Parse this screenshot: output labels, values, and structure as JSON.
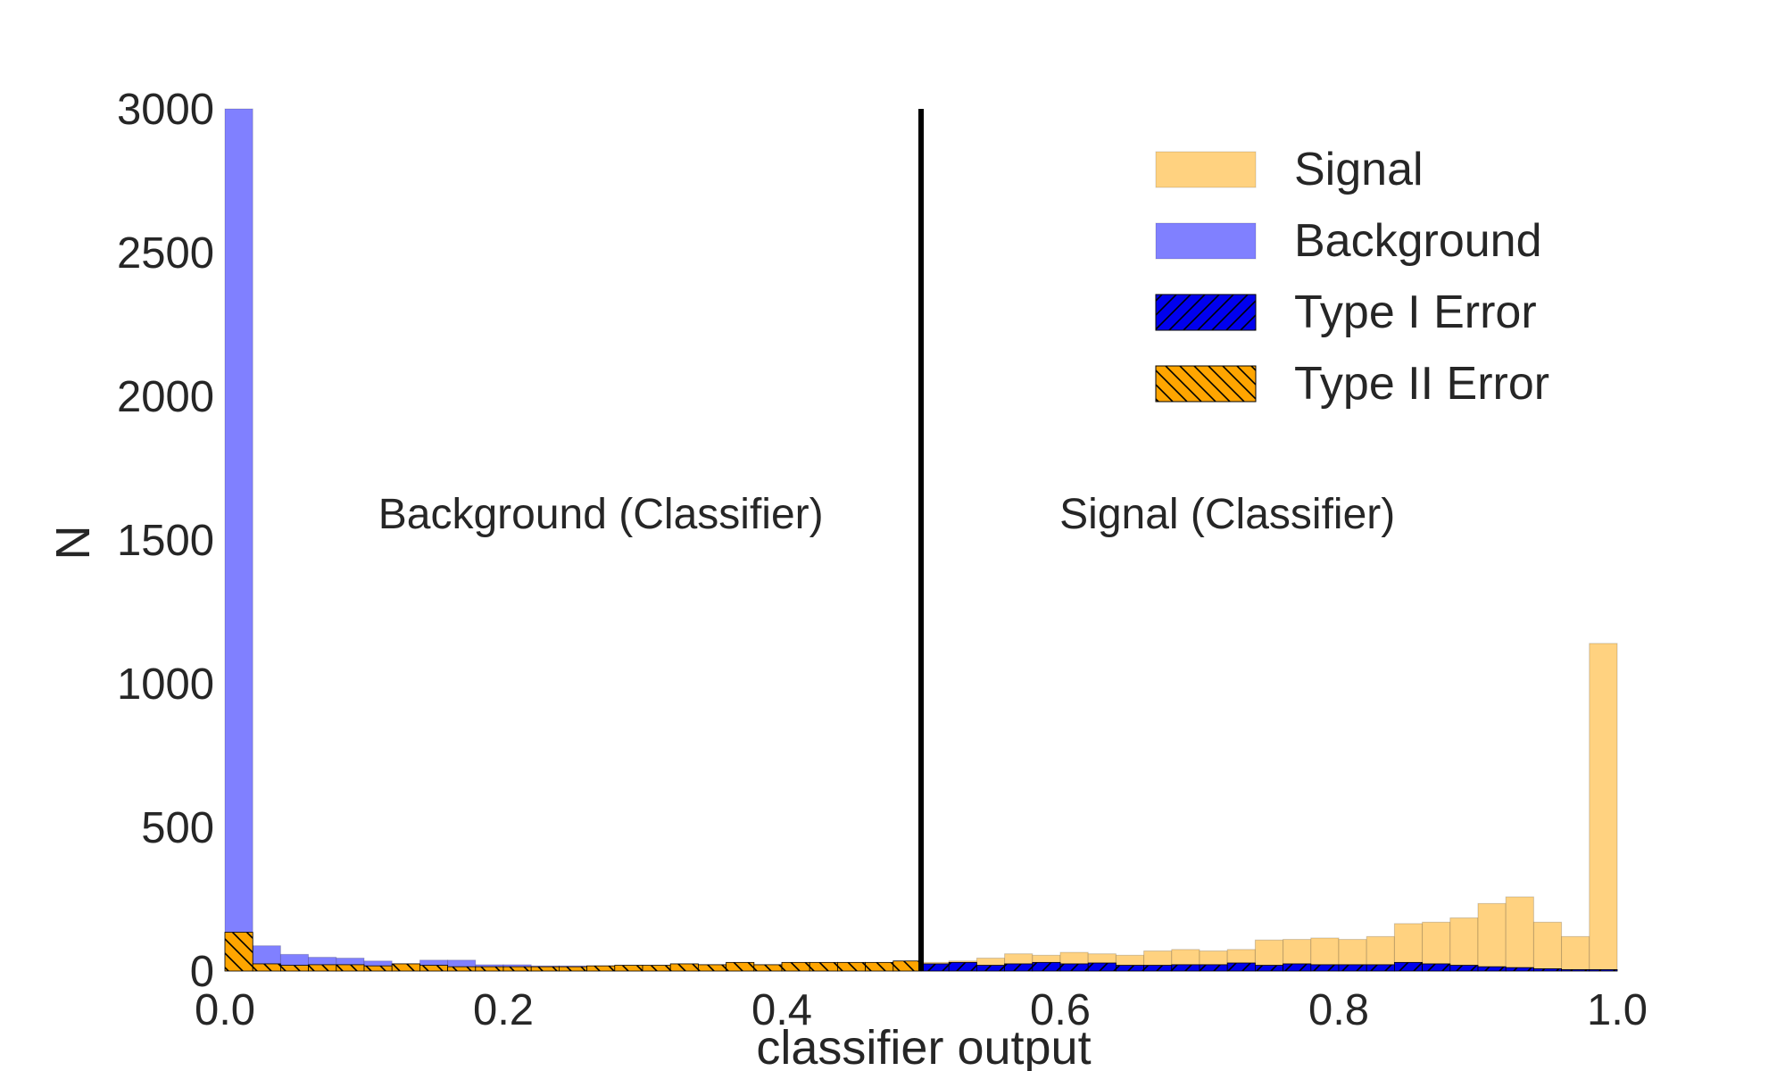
{
  "chart_data": {
    "type": "bar",
    "xlabel": "classifier output",
    "ylabel": "N",
    "xlim": [
      0.0,
      1.0
    ],
    "ylim": [
      0,
      3000
    ],
    "grid": false,
    "xticks": [
      "0.0",
      "0.2",
      "0.4",
      "0.6",
      "0.8",
      "1.0"
    ],
    "yticks": [
      "0",
      "500",
      "1000",
      "1500",
      "2000",
      "2500",
      "3000"
    ],
    "threshold": 0.5,
    "bin_width": 0.02,
    "bin_starts": [
      0.0,
      0.02,
      0.04,
      0.06,
      0.08,
      0.1,
      0.12,
      0.14,
      0.16,
      0.18,
      0.2,
      0.22,
      0.24,
      0.26,
      0.28,
      0.3,
      0.32,
      0.34,
      0.36,
      0.38,
      0.4,
      0.42,
      0.44,
      0.46,
      0.48,
      0.5,
      0.52,
      0.54,
      0.56,
      0.58,
      0.6,
      0.62,
      0.64,
      0.66,
      0.68,
      0.7,
      0.72,
      0.74,
      0.76,
      0.78,
      0.8,
      0.82,
      0.84,
      0.86,
      0.88,
      0.9,
      0.92,
      0.94,
      0.96,
      0.98
    ],
    "annotations": [
      {
        "text": "Background (Classifier)",
        "x": 0.27,
        "y": 1540
      },
      {
        "text": "Signal (Classifier)",
        "x": 0.72,
        "y": 1540
      }
    ],
    "legend": {
      "placement": "top-right",
      "entries": [
        {
          "label": "Signal",
          "color": "#ffd280",
          "hatch": "none"
        },
        {
          "label": "Background",
          "color": "#8080ff",
          "hatch": "none"
        },
        {
          "label": "Type I Error",
          "color": "#0000ee",
          "hatch": "forward"
        },
        {
          "label": "Type II Error",
          "color": "#ffa500",
          "hatch": "backward"
        }
      ]
    },
    "series": [
      {
        "name": "Background",
        "color": "#8080ff",
        "hatch": "none",
        "values": [
          3000,
          88,
          58,
          48,
          45,
          35,
          25,
          38,
          38,
          22,
          22,
          18,
          18,
          15,
          15,
          12,
          10,
          10,
          10,
          8,
          8,
          7,
          7,
          6,
          6,
          0,
          0,
          0,
          0,
          0,
          0,
          0,
          0,
          0,
          0,
          0,
          0,
          0,
          0,
          0,
          0,
          0,
          0,
          0,
          0,
          0,
          0,
          0,
          0,
          0
        ]
      },
      {
        "name": "Signal",
        "color": "#ffd280",
        "hatch": "none",
        "values": [
          0,
          0,
          0,
          0,
          0,
          0,
          0,
          0,
          0,
          0,
          0,
          0,
          0,
          0,
          0,
          0,
          0,
          0,
          0,
          0,
          0,
          0,
          0,
          0,
          0,
          30,
          35,
          45,
          60,
          55,
          65,
          60,
          55,
          70,
          75,
          70,
          75,
          108,
          110,
          115,
          110,
          120,
          165,
          170,
          185,
          235,
          258,
          170,
          120,
          1140
        ]
      },
      {
        "name": "Type I Error",
        "color": "#0000ee",
        "hatch": "forward",
        "values": [
          0,
          0,
          0,
          0,
          0,
          0,
          0,
          0,
          0,
          0,
          0,
          0,
          0,
          0,
          0,
          0,
          0,
          0,
          0,
          0,
          0,
          0,
          0,
          0,
          0,
          25,
          30,
          20,
          25,
          30,
          25,
          28,
          20,
          20,
          22,
          22,
          28,
          20,
          25,
          22,
          22,
          22,
          30,
          25,
          20,
          15,
          12,
          8,
          5,
          5
        ]
      },
      {
        "name": "Type II Error",
        "color": "#ffa500",
        "hatch": "backward",
        "values": [
          135,
          25,
          20,
          22,
          22,
          18,
          25,
          20,
          15,
          15,
          15,
          15,
          15,
          18,
          20,
          20,
          25,
          22,
          30,
          22,
          30,
          30,
          30,
          30,
          35,
          0,
          0,
          0,
          0,
          0,
          0,
          0,
          0,
          0,
          0,
          0,
          0,
          0,
          0,
          0,
          0,
          0,
          0,
          0,
          0,
          0,
          0,
          0,
          0,
          0
        ]
      }
    ]
  }
}
